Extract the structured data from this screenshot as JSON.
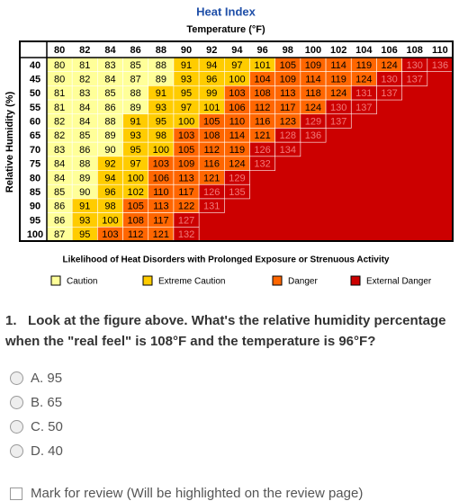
{
  "title": "Heat Index",
  "subtitle": "Temperature (°F)",
  "y_label": "Relative Humidity (%)",
  "table": {
    "columns": [
      80,
      82,
      84,
      86,
      88,
      90,
      92,
      94,
      96,
      98,
      100,
      102,
      104,
      106,
      108,
      110
    ],
    "rows": [
      {
        "humidity": 40,
        "values": [
          80,
          81,
          83,
          85,
          88,
          91,
          94,
          97,
          101,
          105,
          109,
          114,
          119,
          124,
          130,
          136
        ]
      },
      {
        "humidity": 45,
        "values": [
          80,
          82,
          84,
          87,
          89,
          93,
          96,
          100,
          104,
          109,
          114,
          119,
          124,
          130,
          137
        ]
      },
      {
        "humidity": 50,
        "values": [
          81,
          83,
          85,
          88,
          91,
          95,
          99,
          103,
          108,
          113,
          118,
          124,
          131,
          137
        ]
      },
      {
        "humidity": 55,
        "values": [
          81,
          84,
          86,
          89,
          93,
          97,
          101,
          106,
          112,
          117,
          124,
          130,
          137
        ]
      },
      {
        "humidity": 60,
        "values": [
          82,
          84,
          88,
          91,
          95,
          100,
          105,
          110,
          116,
          123,
          129,
          137
        ]
      },
      {
        "humidity": 65,
        "values": [
          82,
          85,
          89,
          93,
          98,
          103,
          108,
          114,
          121,
          128,
          136
        ]
      },
      {
        "humidity": 70,
        "values": [
          83,
          86,
          90,
          95,
          100,
          105,
          112,
          119,
          126,
          134
        ]
      },
      {
        "humidity": 75,
        "values": [
          84,
          88,
          92,
          97,
          103,
          109,
          116,
          124,
          132
        ]
      },
      {
        "humidity": 80,
        "values": [
          84,
          89,
          94,
          100,
          106,
          113,
          121,
          129
        ]
      },
      {
        "humidity": 85,
        "values": [
          85,
          90,
          96,
          102,
          110,
          117,
          126,
          135
        ]
      },
      {
        "humidity": 90,
        "values": [
          86,
          91,
          98,
          105,
          113,
          122,
          131
        ]
      },
      {
        "humidity": 95,
        "values": [
          86,
          93,
          100,
          108,
          117,
          127
        ]
      },
      {
        "humidity": 100,
        "values": [
          87,
          95,
          103,
          112,
          121,
          132
        ]
      }
    ]
  },
  "caption": "Likelihood of Heat Disorders with Prolonged Exposure or Strenuous Activity",
  "legend": [
    {
      "label": "Caution",
      "color": "#ffff99",
      "from": 80
    },
    {
      "label": "Extreme Caution",
      "color": "#ffcc00",
      "from": 91
    },
    {
      "label": "Danger",
      "color": "#ff6600",
      "from": 103
    },
    {
      "label": "External Danger",
      "color": "#cc0000",
      "from": 125
    }
  ],
  "question": {
    "number": "1.",
    "text": "Look at the figure above. What's the relative humidity percentage when the \"real feel\" is 108°F and the temperature is 96°F?",
    "options": [
      {
        "letter": "A.",
        "text": "95"
      },
      {
        "letter": "B.",
        "text": "65"
      },
      {
        "letter": "C.",
        "text": "50"
      },
      {
        "letter": "D.",
        "text": "40"
      }
    ]
  },
  "review": "Mark for review (Will be highlighted on the review page)"
}
